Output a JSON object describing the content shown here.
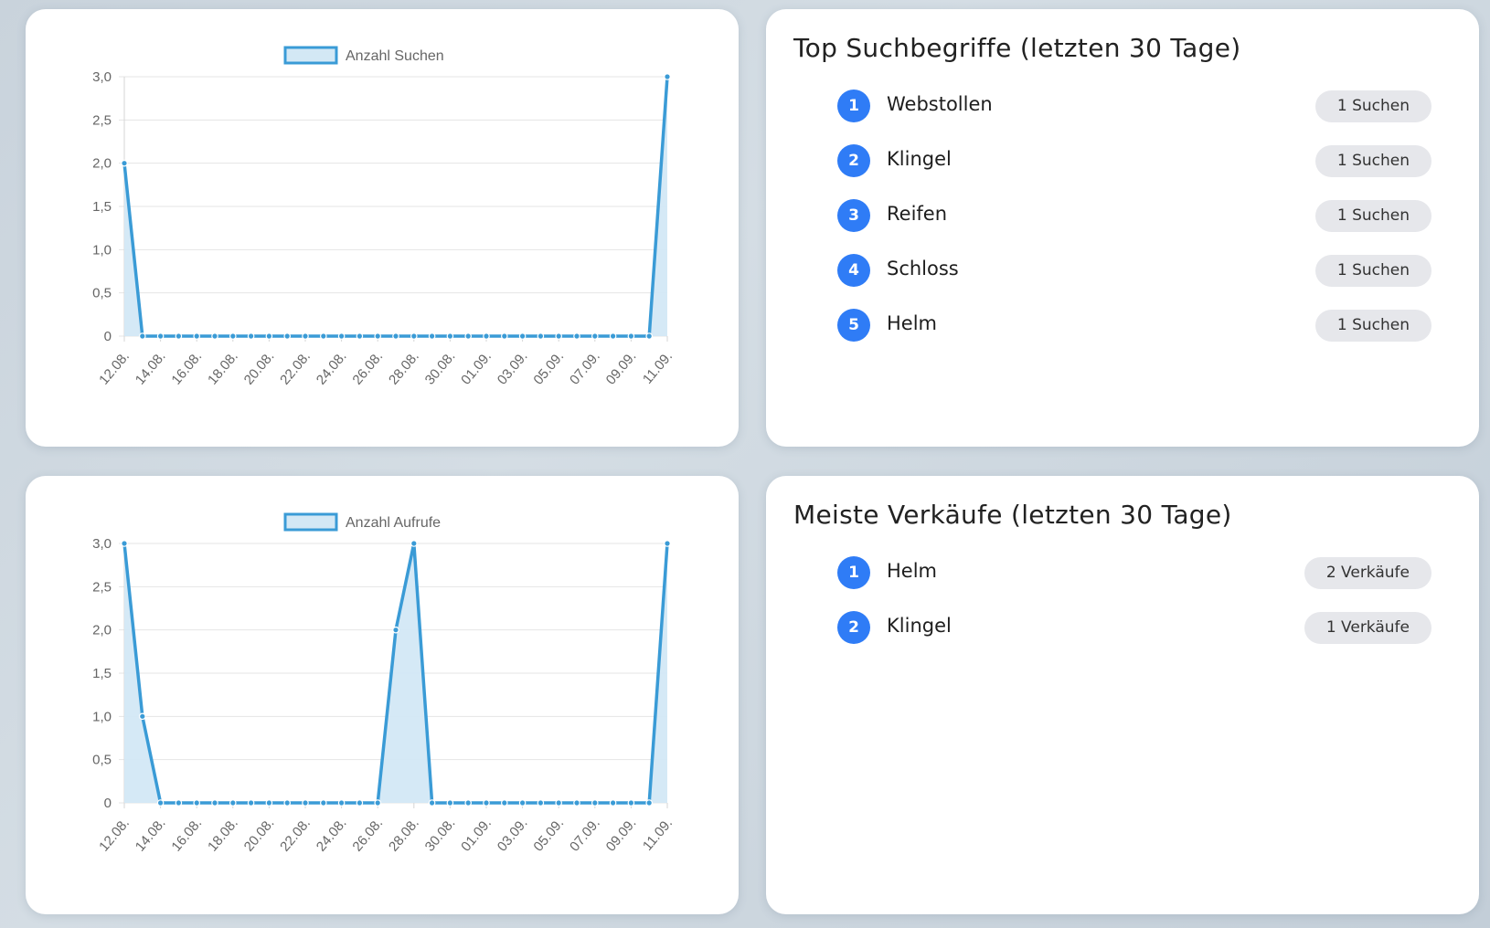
{
  "top_search_terms": {
    "title": "Top Suchbegriffe (letzten 30 Tage)",
    "items": [
      {
        "rank": "1",
        "label": "Webstollen",
        "count": "1 Suchen"
      },
      {
        "rank": "2",
        "label": "Klingel",
        "count": "1 Suchen"
      },
      {
        "rank": "3",
        "label": "Reifen",
        "count": "1 Suchen"
      },
      {
        "rank": "4",
        "label": "Schloss",
        "count": "1 Suchen"
      },
      {
        "rank": "5",
        "label": "Helm",
        "count": "1 Suchen"
      }
    ]
  },
  "top_sales": {
    "title": "Meiste Verkäufe (letzten 30 Tage)",
    "items": [
      {
        "rank": "1",
        "label": "Helm",
        "count": "2 Verkäufe"
      },
      {
        "rank": "2",
        "label": "Klingel",
        "count": "1 Verkäufe"
      }
    ]
  },
  "colors": {
    "line": "#3a9bd6",
    "fill": "#d3e8f5",
    "rank_badge": "#2f7cf6",
    "count_badge": "#e6e7eb"
  },
  "chart_data": [
    {
      "type": "area",
      "legend": {
        "label": "Anzahl Suchen",
        "placement": "top"
      },
      "x": [
        "12.08.",
        "13.08.",
        "14.08.",
        "15.08.",
        "16.08.",
        "17.08.",
        "18.08.",
        "19.08.",
        "20.08.",
        "21.08.",
        "22.08.",
        "23.08.",
        "24.08.",
        "25.08.",
        "26.08.",
        "27.08.",
        "28.08.",
        "29.08.",
        "30.08.",
        "31.08.",
        "01.09.",
        "02.09.",
        "03.09.",
        "04.09.",
        "05.09.",
        "06.09.",
        "07.09.",
        "08.09.",
        "09.09.",
        "10.09.",
        "11.09."
      ],
      "x_tick_labels": [
        "12.08.",
        "14.08.",
        "16.08.",
        "18.08.",
        "20.08.",
        "22.08.",
        "24.08.",
        "26.08.",
        "28.08.",
        "30.08.",
        "01.09.",
        "03.09.",
        "05.09.",
        "07.09.",
        "09.09.",
        "11.09."
      ],
      "series": [
        {
          "name": "Anzahl Suchen",
          "values": [
            2,
            0,
            0,
            0,
            0,
            0,
            0,
            0,
            0,
            0,
            0,
            0,
            0,
            0,
            0,
            0,
            0,
            0,
            0,
            0,
            0,
            0,
            0,
            0,
            0,
            0,
            0,
            0,
            0,
            0,
            3
          ]
        }
      ],
      "y_ticks": [
        "0",
        "0,5",
        "1,0",
        "1,5",
        "2,0",
        "2,5",
        "3,0"
      ],
      "ylim": [
        0,
        3
      ],
      "grid": true
    },
    {
      "type": "area",
      "legend": {
        "label": "Anzahl Aufrufe",
        "placement": "top"
      },
      "x": [
        "12.08.",
        "13.08.",
        "14.08.",
        "15.08.",
        "16.08.",
        "17.08.",
        "18.08.",
        "19.08.",
        "20.08.",
        "21.08.",
        "22.08.",
        "23.08.",
        "24.08.",
        "25.08.",
        "26.08.",
        "27.08.",
        "28.08.",
        "29.08.",
        "30.08.",
        "31.08.",
        "01.09.",
        "02.09.",
        "03.09.",
        "04.09.",
        "05.09.",
        "06.09.",
        "07.09.",
        "08.09.",
        "09.09.",
        "10.09.",
        "11.09."
      ],
      "x_tick_labels": [
        "12.08.",
        "14.08.",
        "16.08.",
        "18.08.",
        "20.08.",
        "22.08.",
        "24.08.",
        "26.08.",
        "28.08.",
        "30.08.",
        "01.09.",
        "03.09.",
        "05.09.",
        "07.09.",
        "09.09.",
        "11.09."
      ],
      "series": [
        {
          "name": "Anzahl Aufrufe",
          "values": [
            3,
            1,
            0,
            0,
            0,
            0,
            0,
            0,
            0,
            0,
            0,
            0,
            0,
            0,
            0,
            2,
            3,
            0,
            0,
            0,
            0,
            0,
            0,
            0,
            0,
            0,
            0,
            0,
            0,
            0,
            3
          ]
        }
      ],
      "y_ticks": [
        "0",
        "0,5",
        "1,0",
        "1,5",
        "2,0",
        "2,5",
        "3,0"
      ],
      "ylim": [
        0,
        3
      ],
      "grid": true
    }
  ]
}
